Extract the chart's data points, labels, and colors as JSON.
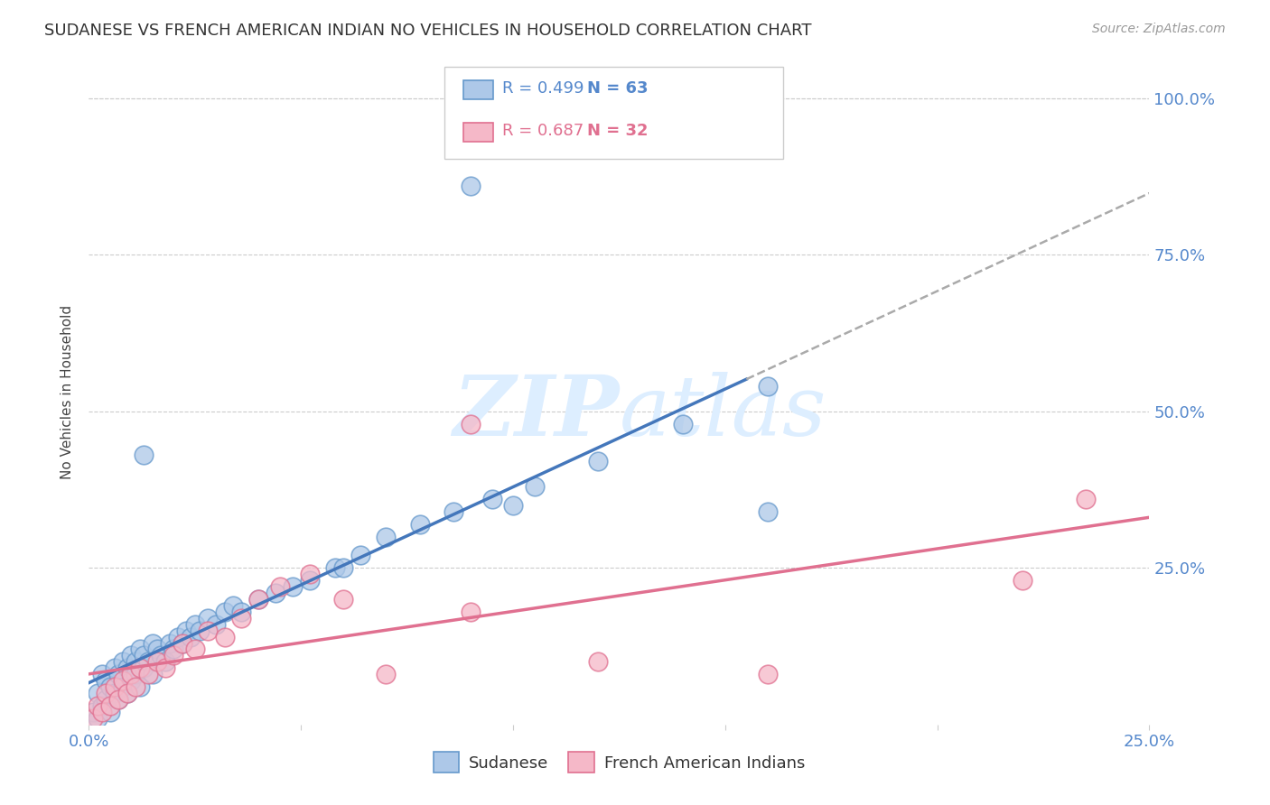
{
  "title": "SUDANESE VS FRENCH AMERICAN INDIAN NO VEHICLES IN HOUSEHOLD CORRELATION CHART",
  "source": "Source: ZipAtlas.com",
  "ylabel": "No Vehicles in Household",
  "xlim": [
    0.0,
    0.25
  ],
  "ylim": [
    0.0,
    1.06
  ],
  "xtick_vals": [
    0.0,
    0.05,
    0.1,
    0.15,
    0.2,
    0.25
  ],
  "xtick_labels": [
    "0.0%",
    "",
    "",
    "",
    "",
    "25.0%"
  ],
  "ytick_vals": [
    0.0,
    0.25,
    0.5,
    0.75,
    1.0
  ],
  "ytick_labels": [
    "",
    "25.0%",
    "50.0%",
    "75.0%",
    "100.0%"
  ],
  "sudanese_color": "#adc8e8",
  "french_color": "#f5b8c8",
  "sudanese_edge": "#6699cc",
  "french_edge": "#e07090",
  "trendline_blue": "#4477bb",
  "trendline_pink": "#e07090",
  "trendline_gray": "#aaaaaa",
  "background_color": "#ffffff",
  "grid_color": "#cccccc",
  "axis_color": "#5588cc",
  "title_color": "#333333",
  "watermark_color": "#ddeeff",
  "sudanese_x": [
    0.001,
    0.002,
    0.002,
    0.003,
    0.003,
    0.004,
    0.004,
    0.005,
    0.005,
    0.006,
    0.006,
    0.007,
    0.007,
    0.008,
    0.008,
    0.009,
    0.009,
    0.01,
    0.01,
    0.011,
    0.011,
    0.012,
    0.012,
    0.013,
    0.013,
    0.014,
    0.015,
    0.015,
    0.016,
    0.017,
    0.018,
    0.019,
    0.02,
    0.021,
    0.022,
    0.023,
    0.024,
    0.025,
    0.026,
    0.028,
    0.03,
    0.032,
    0.034,
    0.036,
    0.04,
    0.044,
    0.048,
    0.052,
    0.058,
    0.064,
    0.07,
    0.078,
    0.086,
    0.095,
    0.105,
    0.12,
    0.14,
    0.16,
    0.013,
    0.09,
    0.16,
    0.06,
    0.1
  ],
  "sudanese_y": [
    0.02,
    0.05,
    0.01,
    0.03,
    0.08,
    0.04,
    0.07,
    0.02,
    0.06,
    0.05,
    0.09,
    0.04,
    0.08,
    0.06,
    0.1,
    0.05,
    0.09,
    0.07,
    0.11,
    0.08,
    0.1,
    0.06,
    0.12,
    0.09,
    0.11,
    0.1,
    0.08,
    0.13,
    0.12,
    0.11,
    0.1,
    0.13,
    0.12,
    0.14,
    0.13,
    0.15,
    0.14,
    0.16,
    0.15,
    0.17,
    0.16,
    0.18,
    0.19,
    0.18,
    0.2,
    0.21,
    0.22,
    0.23,
    0.25,
    0.27,
    0.3,
    0.32,
    0.34,
    0.36,
    0.38,
    0.42,
    0.48,
    0.54,
    0.43,
    0.86,
    0.34,
    0.25,
    0.35
  ],
  "french_x": [
    0.001,
    0.002,
    0.003,
    0.004,
    0.005,
    0.006,
    0.007,
    0.008,
    0.009,
    0.01,
    0.011,
    0.012,
    0.014,
    0.016,
    0.018,
    0.02,
    0.022,
    0.025,
    0.028,
    0.032,
    0.036,
    0.04,
    0.045,
    0.052,
    0.06,
    0.07,
    0.09,
    0.12,
    0.16,
    0.22,
    0.235,
    0.09
  ],
  "french_y": [
    0.01,
    0.03,
    0.02,
    0.05,
    0.03,
    0.06,
    0.04,
    0.07,
    0.05,
    0.08,
    0.06,
    0.09,
    0.08,
    0.1,
    0.09,
    0.11,
    0.13,
    0.12,
    0.15,
    0.14,
    0.17,
    0.2,
    0.22,
    0.24,
    0.2,
    0.08,
    0.48,
    0.1,
    0.08,
    0.23,
    0.36,
    0.18
  ],
  "legend_line1_color": "#5588cc",
  "legend_line2_color": "#e07090",
  "legend_R1": "R = 0.499",
  "legend_N1": "N = 63",
  "legend_R2": "R = 0.687",
  "legend_N2": "N = 32"
}
